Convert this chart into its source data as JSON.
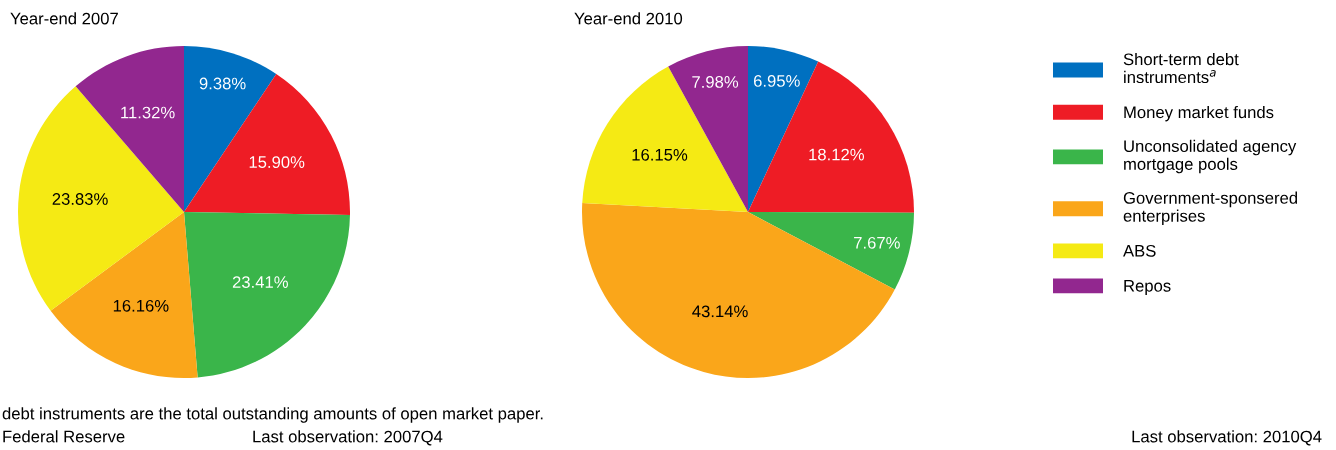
{
  "chart_data": {
    "type": "pie",
    "categories": [
      "Short-term debt\ninstruments$^{a}$",
      "Money market funds",
      "Unconsolidated agency\nmortgage pools",
      "Government-sponsered\nenterprises",
      "ABS",
      "Repos"
    ],
    "colors": [
      "#0070c0",
      "#ee1c25",
      "#3ab54a",
      "#faa61a",
      "#f5ea14",
      "#92278f"
    ],
    "series": [
      {
        "name": "Year-end 2007",
        "values": [
          9.38,
          15.9,
          23.41,
          16.16,
          23.83,
          11.32
        ],
        "value_labels": [
          "9.38%",
          "15.90%",
          "23.41%",
          "16.16%",
          "23.83%",
          "11.32%"
        ]
      },
      {
        "name": "Year-end 2010",
        "values": [
          6.95,
          18.12,
          7.67,
          43.14,
          16.15,
          7.98
        ],
        "value_labels": [
          "6.95%",
          "18.12%",
          "7.67%",
          "43.14%",
          "16.15%",
          "7.98%"
        ]
      }
    ],
    "legend": "right",
    "annotations": [
      "debt instruments are the total outstanding amounts of open market paper.",
      "Federal Reserve",
      "Last observation: 2007Q4",
      "Last observation: 2010Q4"
    ]
  }
}
